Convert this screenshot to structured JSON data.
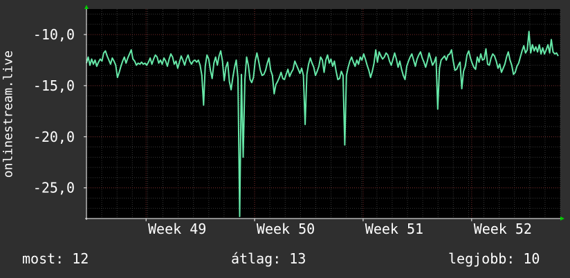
{
  "chart_data": {
    "type": "line",
    "ylabel": "onlinestream.live",
    "ylim": [
      -28,
      -7.5
    ],
    "yticks": [
      -10,
      -15,
      -20,
      -25
    ],
    "ytick_labels": [
      "-10,0",
      "-15,0",
      "-20,0",
      "-25,0"
    ],
    "x_range_days": [
      0,
      31
    ],
    "xticks": [
      {
        "label": "Week 49",
        "day": 3.9
      },
      {
        "label": "Week 50",
        "day": 11.0
      },
      {
        "label": "Week 51",
        "day": 18.1
      },
      {
        "label": "Week 52",
        "day": 25.2
      }
    ],
    "grid": true,
    "line_color": "#66e8a8",
    "series": [
      {
        "values": [
          -12.8,
          -12.2,
          -13.0,
          -12.4,
          -12.9,
          -12.5,
          -13.1,
          -12.7,
          -12.4,
          -12.6,
          -11.8,
          -11.6,
          -12.1,
          -12.5,
          -12.9,
          -12.3,
          -12.6,
          -13.0,
          -14.2,
          -13.7,
          -13.1,
          -12.6,
          -12.2,
          -12.8,
          -12.3,
          -11.9,
          -11.5,
          -12.4,
          -12.6,
          -13.0,
          -12.8,
          -12.9,
          -12.7,
          -12.9,
          -12.8,
          -13.0,
          -12.7,
          -12.3,
          -12.9,
          -12.4,
          -12.0,
          -12.2,
          -12.8,
          -12.5,
          -12.9,
          -12.3,
          -12.6,
          -13.1,
          -12.4,
          -11.9,
          -12.2,
          -12.9,
          -12.6,
          -13.3,
          -12.7,
          -12.1,
          -12.5,
          -13.0,
          -12.4,
          -12.0,
          -12.6,
          -12.9,
          -12.6,
          -12.5,
          -12.7,
          -12.5,
          -13.0,
          -14.0,
          -16.9,
          -13.1,
          -12.0,
          -12.4,
          -13.5,
          -14.3,
          -12.8,
          -12.2,
          -13.0,
          -12.1,
          -11.6,
          -12.6,
          -14.5,
          -13.2,
          -12.7,
          -14.6,
          -15.4,
          -14.2,
          -13.2,
          -12.5,
          -14.3,
          -27.8,
          -13.9,
          -22.0,
          -14.4,
          -12.2,
          -13.0,
          -14.4,
          -14.7,
          -14.2,
          -12.6,
          -11.8,
          -12.6,
          -13.5,
          -14.0,
          -13.9,
          -13.5,
          -12.8,
          -12.3,
          -13.5,
          -14.0,
          -15.8,
          -14.9,
          -14.6,
          -14.2,
          -13.7,
          -14.3,
          -14.4,
          -13.9,
          -13.4,
          -14.1,
          -13.7,
          -13.4,
          -12.6,
          -13.0,
          -13.4,
          -13.8,
          -13.3,
          -14.0,
          -18.8,
          -13.9,
          -12.9,
          -12.3,
          -12.8,
          -13.2,
          -14.0,
          -13.6,
          -13.1,
          -12.2,
          -12.5,
          -13.7,
          -12.5,
          -12.0,
          -12.8,
          -12.4,
          -13.1,
          -12.6,
          -13.6,
          -14.4,
          -14.3,
          -13.6,
          -14.0,
          -20.8,
          -14.0,
          -13.2,
          -12.6,
          -12.2,
          -12.7,
          -13.1,
          -12.5,
          -12.9,
          -12.2,
          -12.5,
          -11.9,
          -12.4,
          -13.0,
          -13.5,
          -14.2,
          -13.6,
          -12.8,
          -11.5,
          -12.7,
          -11.7,
          -12.1,
          -12.4,
          -12.2,
          -11.8,
          -12.0,
          -12.6,
          -13.0,
          -12.4,
          -11.8,
          -12.4,
          -13.2,
          -12.6,
          -13.4,
          -14.0,
          -14.4,
          -13.1,
          -12.6,
          -12.2,
          -11.9,
          -12.5,
          -13.1,
          -12.4,
          -12.0,
          -11.7,
          -12.3,
          -12.7,
          -13.2,
          -12.6,
          -11.8,
          -12.4,
          -13.0,
          -12.7,
          -12.2,
          -17.3,
          -13.3,
          -12.5,
          -12.3,
          -12.1,
          -12.5,
          -12.0,
          -11.9,
          -11.5,
          -12.6,
          -13.5,
          -13.4,
          -13.0,
          -12.7,
          -15.3,
          -13.6,
          -13.1,
          -12.0,
          -11.6,
          -12.3,
          -12.8,
          -13.2,
          -13.4,
          -12.2,
          -12.7,
          -11.9,
          -12.5,
          -12.4,
          -11.4,
          -12.9,
          -13.0,
          -12.3,
          -11.9,
          -12.1,
          -12.6,
          -13.3,
          -12.9,
          -13.7,
          -13.3,
          -12.9,
          -12.2,
          -11.7,
          -12.5,
          -13.0,
          -13.9,
          -13.7,
          -13.1,
          -12.8,
          -12.2,
          -11.6,
          -11.1,
          -11.8,
          -11.5,
          -9.7,
          -11.8,
          -11.0,
          -11.6,
          -11.2,
          -11.7,
          -11.0,
          -11.9,
          -11.3,
          -11.9,
          -11.5,
          -11.0,
          -11.8,
          -10.5,
          -11.7,
          -11.9,
          -11.8,
          -12.1
        ]
      }
    ]
  },
  "stats": {
    "current": "most: 12",
    "average": "átlag: 13",
    "best": "legjobb: 10"
  }
}
